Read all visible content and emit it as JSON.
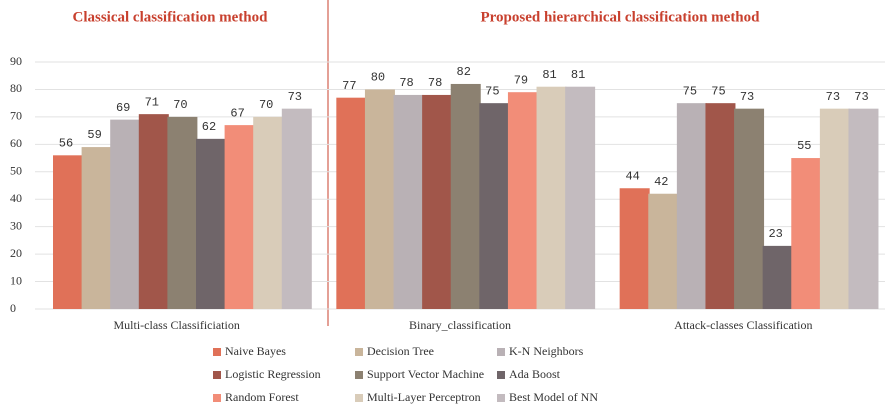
{
  "chart_data": {
    "type": "bar",
    "annotations": [
      "Classical classification method",
      "Proposed hierarchical classification method"
    ],
    "categories": [
      "Multi-class Classificiation",
      "Binary_classification",
      "Attack-classes Classification"
    ],
    "series": [
      {
        "name": "Naive Bayes",
        "color": "#e07158",
        "values": [
          56,
          77,
          44
        ]
      },
      {
        "name": "Decision Tree",
        "color": "#c9b59b",
        "values": [
          59,
          80,
          42
        ]
      },
      {
        "name": "K-N Neighbors",
        "color": "#b9b1b5",
        "values": [
          69,
          78,
          75
        ]
      },
      {
        "name": "Logistic Regression",
        "color": "#a1564a",
        "values": [
          71,
          78,
          75
        ]
      },
      {
        "name": "Support Vector Machine",
        "color": "#8c8171",
        "values": [
          70,
          82,
          73
        ]
      },
      {
        "name": "Ada Boost",
        "color": "#6f6569",
        "values": [
          62,
          75,
          23
        ]
      },
      {
        "name": "Random Forest",
        "color": "#f28d78",
        "values": [
          67,
          79,
          55
        ]
      },
      {
        "name": "Multi-Layer Perceptron",
        "color": "#d9ccb9",
        "values": [
          70,
          81,
          73
        ]
      },
      {
        "name": "Best Model of NN",
        "color": "#c3bbbf",
        "values": [
          73,
          81,
          73
        ]
      }
    ],
    "ylim": [
      0,
      90
    ],
    "yticks": [
      0,
      10,
      20,
      30,
      40,
      50,
      60,
      70,
      80,
      90
    ],
    "grid": true
  }
}
